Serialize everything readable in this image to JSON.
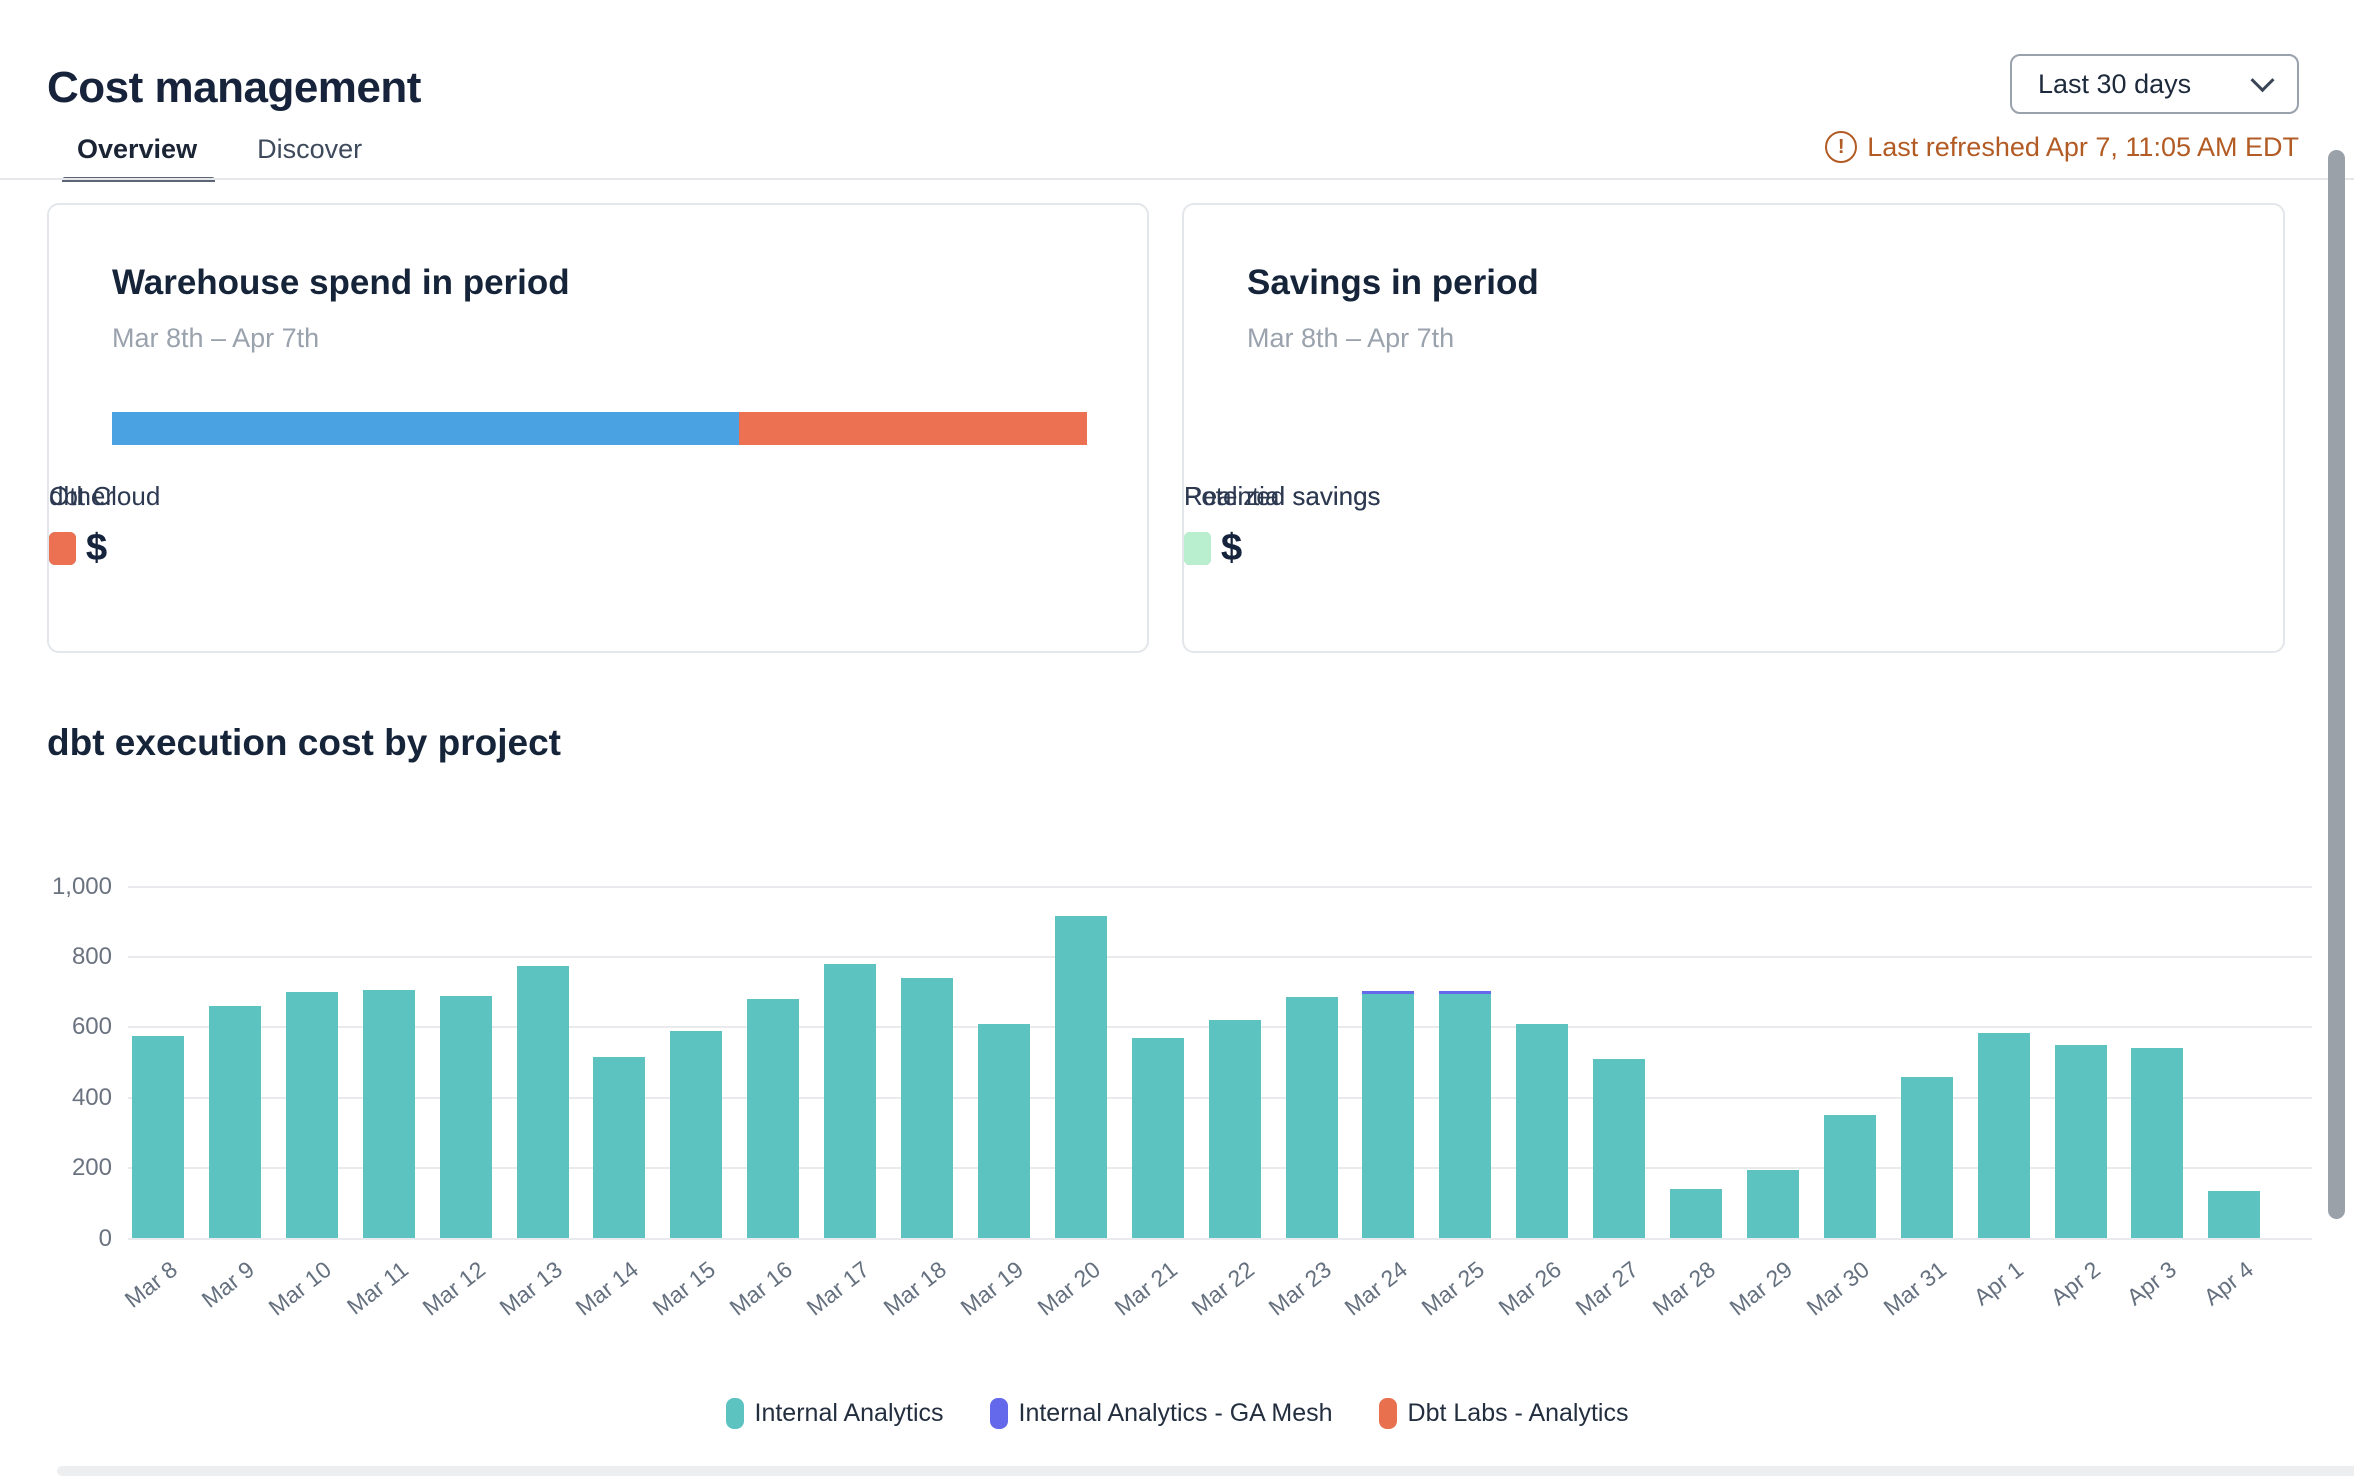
{
  "page": {
    "title": "Cost management",
    "date_range_selector": {
      "value": "Last 30 days"
    },
    "refresh_status": {
      "icon_glyph": "!",
      "text": "Last refreshed Apr 7, 11:05 AM EDT"
    },
    "tabs": [
      {
        "label": "Overview",
        "active": true
      },
      {
        "label": "Discover",
        "active": false
      }
    ]
  },
  "cards": {
    "warehouse_spend": {
      "title": "Warehouse spend in period",
      "subtitle": "Mar 8th – Apr 7th",
      "stacked_bar_segments": [
        {
          "name": "dbt Cloud",
          "color": "#4aa2e2",
          "percent": 64.3
        },
        {
          "name": "Other",
          "color": "#ec7052",
          "percent": 35.7
        }
      ],
      "legend": [
        {
          "label": "dbt Cloud",
          "color": "#4aa2e2",
          "currency_symbol": "$",
          "value_redacted": true
        },
        {
          "label": "Other",
          "color": "#ec7052",
          "currency_symbol": "$",
          "value_redacted": true
        }
      ]
    },
    "savings": {
      "title": "Savings in period",
      "subtitle": "Mar 8th – Apr 7th",
      "legend": [
        {
          "label": "Realized savings",
          "color": "#4bac7d",
          "currency_symbol": "$",
          "value_redacted": true
        },
        {
          "label": "Potential savings",
          "color": "#b9eecf",
          "currency_symbol": "$",
          "value_redacted": true
        }
      ]
    }
  },
  "chart_section": {
    "title": "dbt execution cost by project"
  },
  "chart_data": {
    "type": "bar",
    "stacked": true,
    "title": "dbt execution cost by project",
    "xlabel": "",
    "ylabel": "",
    "ylim": [
      0,
      1000
    ],
    "grid": true,
    "legend_position": "bottom",
    "yticks": [
      0,
      200,
      400,
      600,
      800,
      1000
    ],
    "ytick_labels": [
      "0",
      "200",
      "400",
      "600",
      "800",
      "1,000"
    ],
    "categories": [
      "Mar 8",
      "Mar 9",
      "Mar 10",
      "Mar 11",
      "Mar 12",
      "Mar 13",
      "Mar 14",
      "Mar 15",
      "Mar 16",
      "Mar 17",
      "Mar 18",
      "Mar 19",
      "Mar 20",
      "Mar 21",
      "Mar 22",
      "Mar 23",
      "Mar 24",
      "Mar 25",
      "Mar 26",
      "Mar 27",
      "Mar 28",
      "Mar 29",
      "Mar 30",
      "Mar 31",
      "Apr 1",
      "Apr 2",
      "Apr 3",
      "Apr 4"
    ],
    "series": [
      {
        "name": "Internal Analytics",
        "color": "#5cc3c0",
        "values": [
          575,
          660,
          700,
          705,
          690,
          775,
          515,
          590,
          680,
          780,
          740,
          610,
          915,
          570,
          620,
          685,
          695,
          695,
          610,
          510,
          140,
          195,
          350,
          460,
          585,
          550,
          540,
          135
        ]
      },
      {
        "name": "Internal Analytics - GA Mesh",
        "color": "#6468ea",
        "values": [
          0,
          0,
          0,
          0,
          0,
          0,
          0,
          0,
          0,
          0,
          0,
          0,
          0,
          0,
          0,
          0,
          8,
          8,
          0,
          0,
          0,
          0,
          0,
          0,
          0,
          0,
          0,
          0
        ]
      },
      {
        "name": "Dbt Labs - Analytics",
        "color": "#e8704e",
        "values": [
          0,
          0,
          0,
          0,
          0,
          0,
          0,
          0,
          0,
          0,
          0,
          0,
          0,
          0,
          0,
          0,
          0,
          0,
          0,
          0,
          0,
          0,
          0,
          0,
          0,
          0,
          0,
          0
        ]
      }
    ]
  }
}
